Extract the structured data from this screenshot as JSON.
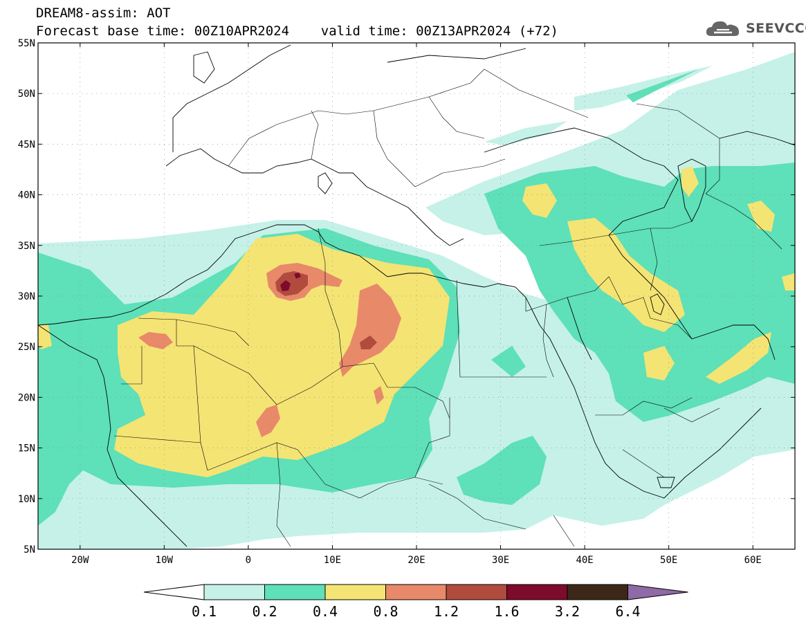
{
  "header": {
    "title_line1": "DREAM8-assim: AOT",
    "title_line2": "Forecast base time: 00Z10APR2024    valid time: 00Z13APR2024 (+72)"
  },
  "logo": {
    "text": "SEEVCCC",
    "icon": "cloud-icon",
    "color": "#555555"
  },
  "map": {
    "lat_labels": [
      "55N",
      "50N",
      "45N",
      "40N",
      "35N",
      "30N",
      "25N",
      "20N",
      "15N",
      "10N",
      "5N"
    ],
    "lon_labels": [
      "20W",
      "10W",
      "0",
      "10E",
      "20E",
      "30E",
      "40E",
      "50E",
      "60E"
    ],
    "lat_values": [
      55,
      50,
      45,
      40,
      35,
      30,
      25,
      20,
      15,
      10,
      5
    ],
    "lon_values": [
      -20,
      -10,
      0,
      10,
      20,
      30,
      40,
      50,
      60
    ],
    "lon_range": [
      -25,
      65
    ],
    "lat_range": [
      5,
      55
    ],
    "grid": "dotted"
  },
  "colorbar": {
    "labels": [
      "0.1",
      "0.2",
      "0.4",
      "0.8",
      "1.2",
      "1.6",
      "3.2",
      "6.4"
    ],
    "colors": [
      "#ffffff",
      "#c5f1e8",
      "#5ee0b8",
      "#f4e474",
      "#e8896a",
      "#b04b3e",
      "#7e0a2c",
      "#3d2718",
      "#8e6aa6"
    ]
  }
}
